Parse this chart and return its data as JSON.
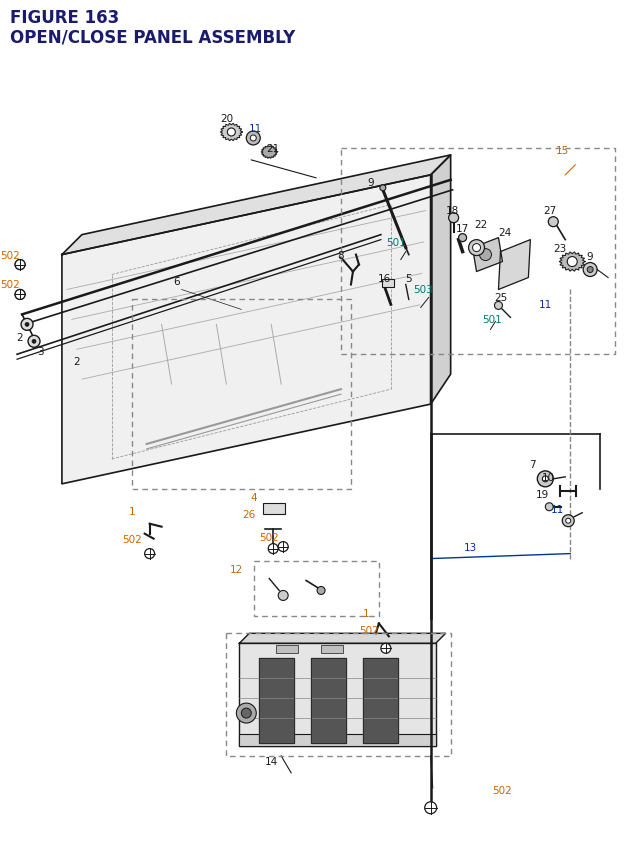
{
  "title_line1": "FIGURE 163",
  "title_line2": "OPEN/CLOSE PANEL ASSEMBLY",
  "title_color": "#1a1a6e",
  "title_fontsize": 12,
  "bg_color": "#ffffff",
  "orange": "#cc6600",
  "blue": "#003399",
  "black": "#1a1a1a",
  "teal": "#007777",
  "gray_line": "#888888",
  "gray_fill": "#e8e8e8",
  "gray_fill2": "#d0d0d0"
}
